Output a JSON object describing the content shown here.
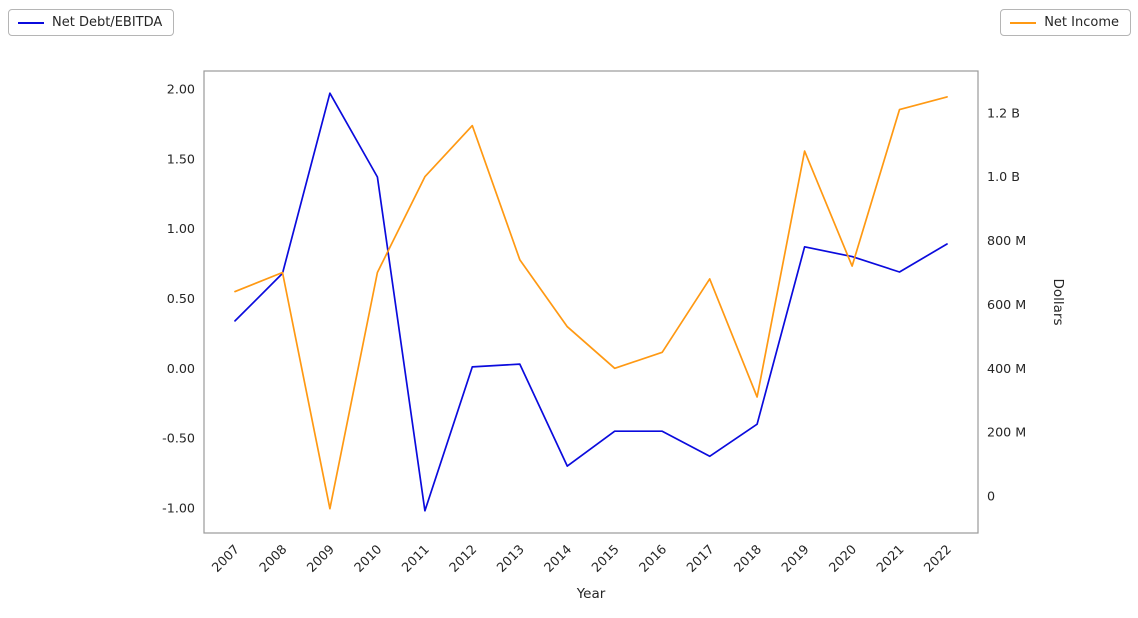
{
  "legend_left": {
    "label": "Net Debt/EBITDA",
    "color": "#0b0bdd"
  },
  "legend_right": {
    "label": "Net Income",
    "color": "#ff9913"
  },
  "chart_data": {
    "type": "line",
    "title": "",
    "xlabel": "Year",
    "ylabel_right": "Dollars",
    "grid": false,
    "legend_position": "top-left and top-right, outside plot, boxed",
    "x": [
      "2007",
      "2008",
      "2009",
      "2010",
      "2011",
      "2012",
      "2013",
      "2014",
      "2015",
      "2016",
      "2017",
      "2018",
      "2019",
      "2020",
      "2021",
      "2022"
    ],
    "series": [
      {
        "name": "Net Debt/EBITDA",
        "axis": "left",
        "color": "#0b0bdd",
        "values": [
          0.34,
          0.68,
          1.97,
          1.37,
          -1.02,
          0.01,
          0.03,
          -0.7,
          -0.45,
          -0.45,
          -0.63,
          -0.4,
          0.87,
          0.8,
          0.69,
          0.89
        ]
      },
      {
        "name": "Net Income",
        "axis": "right",
        "unit": "millions of dollars",
        "color": "#ff9913",
        "values": [
          640,
          700,
          -40,
          700,
          1000,
          1160,
          740,
          530,
          400,
          450,
          680,
          310,
          1080,
          720,
          1210,
          1250
        ]
      }
    ],
    "left_axis": {
      "ticks": [
        2.0,
        1.5,
        1.0,
        0.5,
        0.0,
        -0.5,
        -1.0
      ],
      "tick_labels": [
        "2.00",
        "1.50",
        "1.00",
        "0.50",
        "0.00",
        "-0.50",
        "-1.00"
      ],
      "range": [
        -1.179,
        2.129
      ]
    },
    "right_axis": {
      "ticks": [
        1200,
        1000,
        800,
        600,
        400,
        200,
        0
      ],
      "tick_labels": [
        "1.2 B",
        "1.0 B",
        "800 M",
        "600 M",
        "400 M",
        "200 M",
        "0"
      ],
      "range": [
        -116,
        1331
      ],
      "unit": "millions of dollars"
    }
  }
}
